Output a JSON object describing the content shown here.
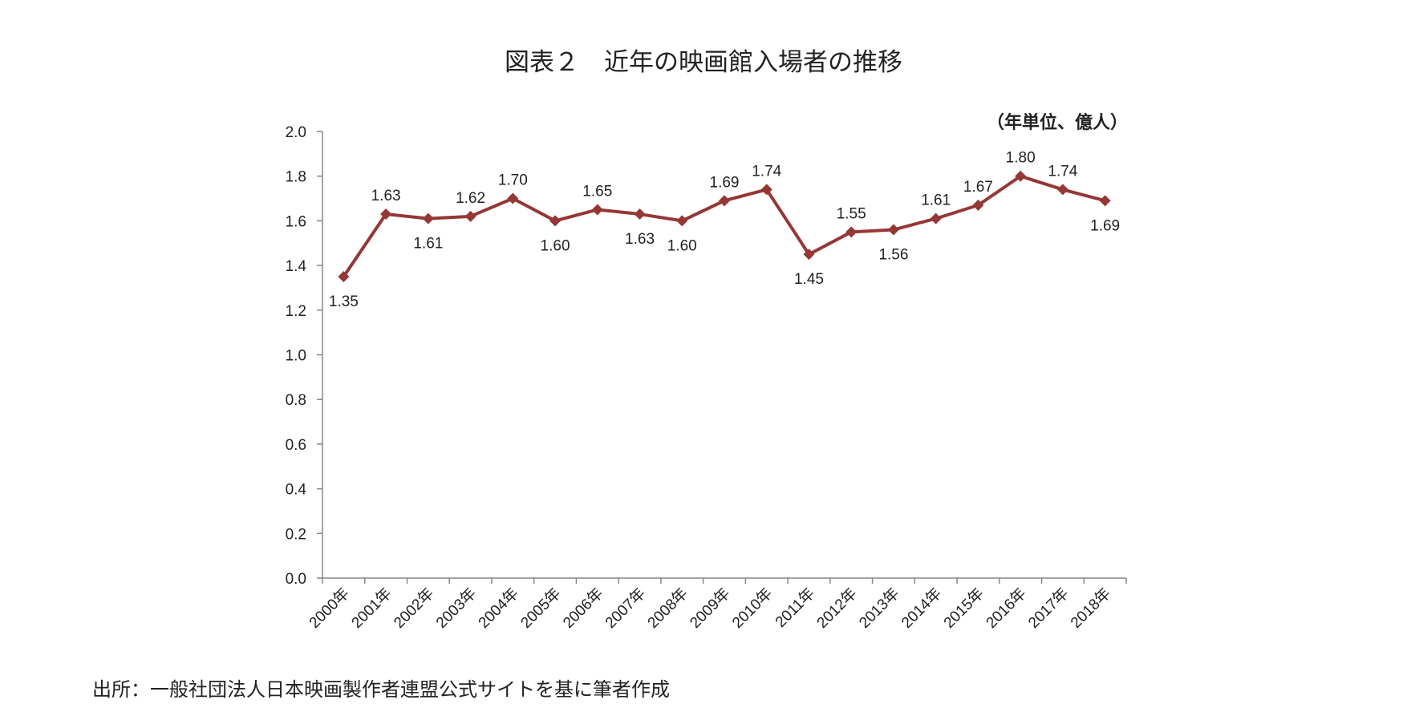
{
  "chart_data": {
    "type": "line",
    "title": "図表２　近年の映画館入場者の推移",
    "unit_label": "（年単位、億人）",
    "source": "出所：一般社団法人日本映画製作者連盟公式サイトを基に筆者作成",
    "categories": [
      "2000年",
      "2001年",
      "2002年",
      "2003年",
      "2004年",
      "2005年",
      "2006年",
      "2007年",
      "2008年",
      "2009年",
      "2010年",
      "2011年",
      "2012年",
      "2013年",
      "2014年",
      "2015年",
      "2016年",
      "2017年",
      "2018年"
    ],
    "values": [
      1.35,
      1.63,
      1.61,
      1.62,
      1.7,
      1.6,
      1.65,
      1.63,
      1.6,
      1.69,
      1.74,
      1.45,
      1.55,
      1.56,
      1.61,
      1.67,
      1.8,
      1.74,
      1.69
    ],
    "data_labels": [
      "1.35",
      "1.63",
      "1.61",
      "1.62",
      "1.70",
      "1.60",
      "1.65",
      "1.63",
      "1.60",
      "1.69",
      "1.74",
      "1.45",
      "1.55",
      "1.56",
      "1.61",
      "1.67",
      "1.80",
      "1.74",
      "1.69"
    ],
    "label_position": [
      "below",
      "above",
      "below",
      "above",
      "above",
      "below",
      "above",
      "below",
      "below",
      "above",
      "above",
      "below",
      "above",
      "below",
      "above",
      "above",
      "above",
      "above",
      "below"
    ],
    "y_ticks": [
      "0.0",
      "0.2",
      "0.4",
      "0.6",
      "0.8",
      "1.0",
      "1.2",
      "1.4",
      "1.6",
      "1.8",
      "2.0"
    ],
    "ylim": [
      0,
      2.0
    ],
    "grid": false,
    "legend": "none",
    "series_color": "#953735"
  }
}
